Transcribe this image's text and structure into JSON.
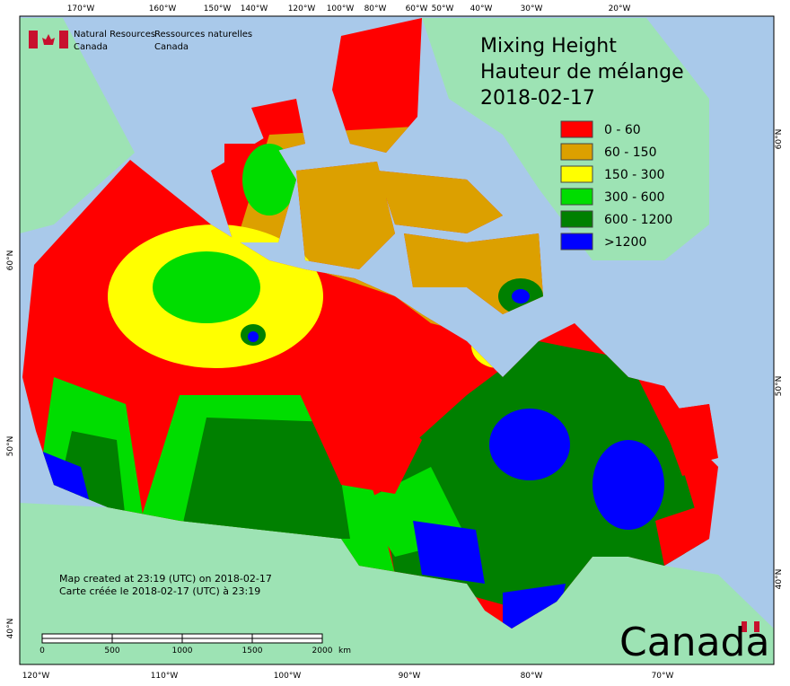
{
  "header": {
    "agency_en": [
      "Natural Resources",
      "Canada"
    ],
    "agency_fr": [
      "Ressources naturelles",
      "Canada"
    ],
    "title": [
      "Mixing Height",
      "Hauteur de mélange",
      "2018-02-17"
    ]
  },
  "legend": [
    {
      "label": "0 - 60",
      "color": "#ff0000"
    },
    {
      "label": "60 - 150",
      "color": "#dca000"
    },
    {
      "label": "150 - 300",
      "color": "#ffff00"
    },
    {
      "label": "300 - 600",
      "color": "#00dd00"
    },
    {
      "label": "600 - 1200",
      "color": "#008000"
    },
    {
      "label": ">1200",
      "color": "#0000ff"
    }
  ],
  "graticule": {
    "top": [
      "170°W",
      "160°W",
      "150°W",
      "140°W",
      "120°W",
      "100°W",
      "80°W",
      "60°W",
      "50°W",
      "40°W",
      "30°W",
      "20°W"
    ],
    "bottom": [
      "120°W",
      "110°W",
      "100°W",
      "90°W",
      "80°W",
      "70°W"
    ],
    "left": [
      "60°N",
      "50°N",
      "40°N"
    ],
    "right": [
      "60°N",
      "50°N",
      "40°N"
    ]
  },
  "notes": [
    "Map created at 23:19 (UTC) on 2018-02-17",
    "Carte créée le 2018-02-17 (UTC) à 23:19"
  ],
  "scale_bar": {
    "ticks": [
      0,
      500,
      1000,
      1500,
      2000
    ],
    "unit": "km"
  },
  "wordmark": "Canada"
}
